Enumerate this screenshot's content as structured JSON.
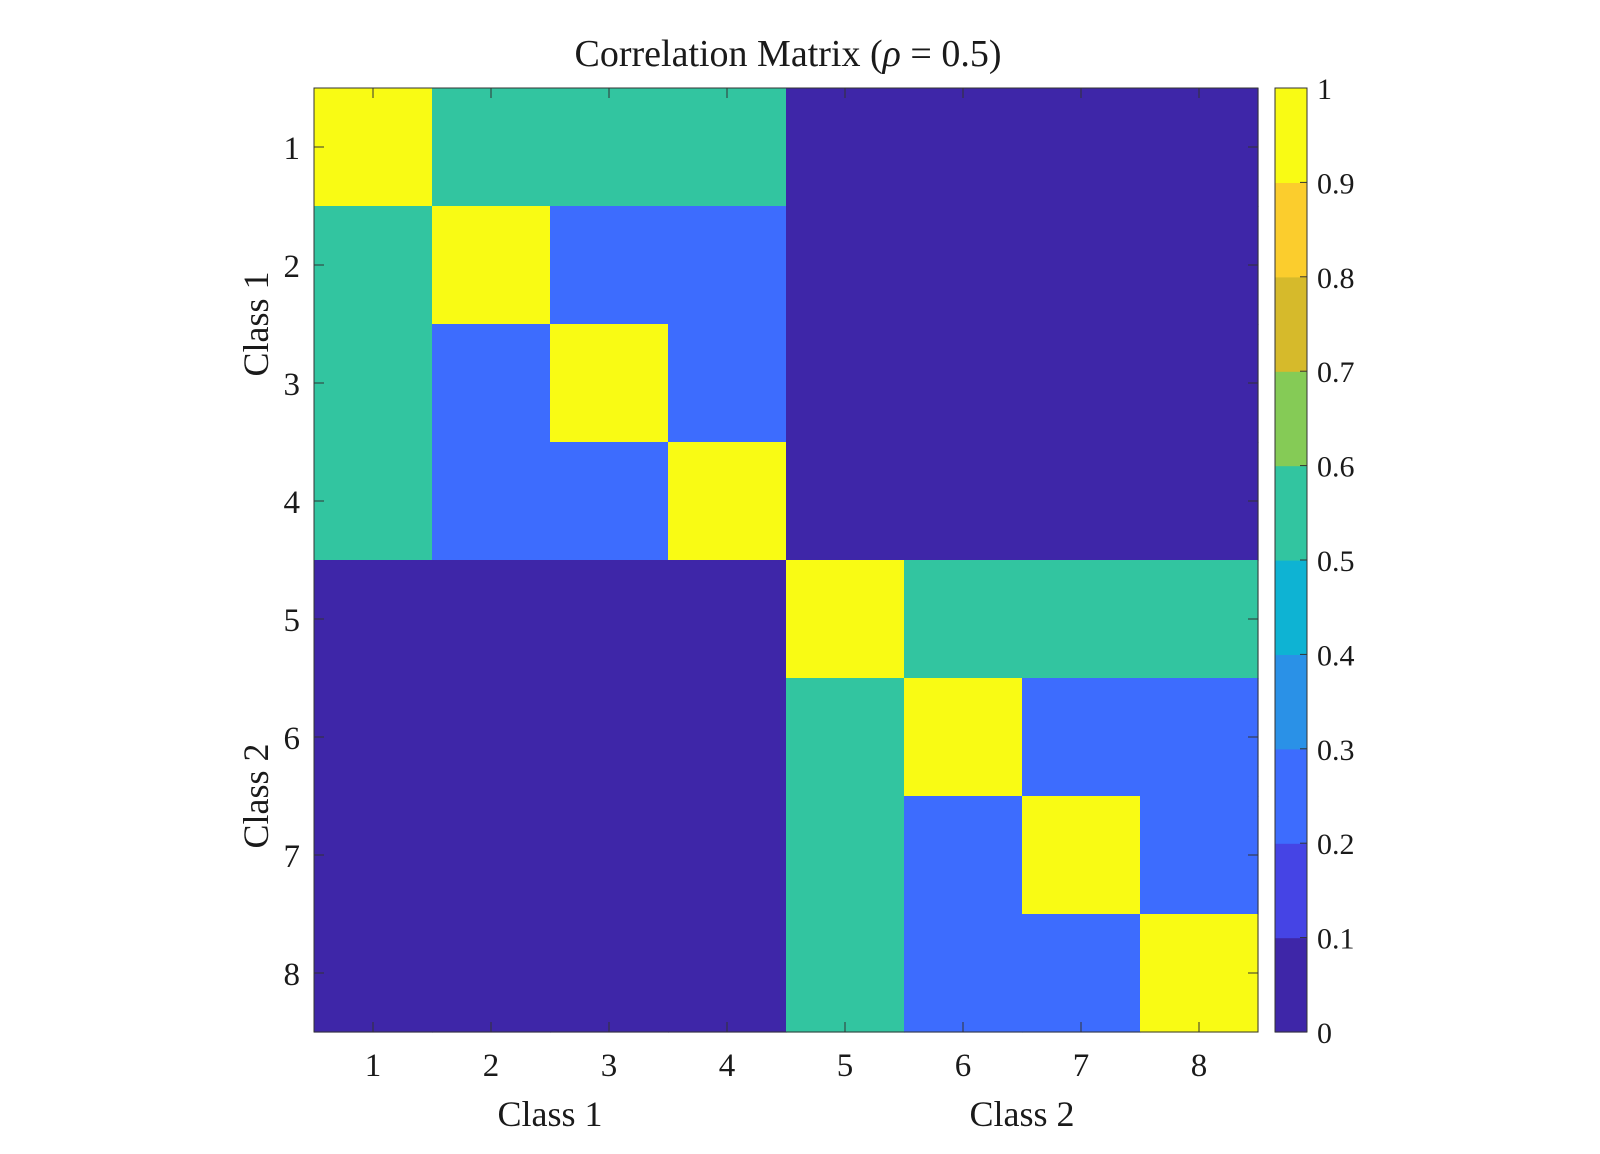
{
  "chart_data": {
    "type": "heatmap",
    "title": "Correlation Matrix (ρ = 0.5)",
    "title_main": "Correlation Matrix (",
    "title_symbol": "ρ",
    "title_tail": " = 0.5)",
    "x_ticks": [
      "1",
      "2",
      "3",
      "4",
      "5",
      "6",
      "7",
      "8"
    ],
    "y_ticks": [
      "1",
      "2",
      "3",
      "4",
      "5",
      "6",
      "7",
      "8"
    ],
    "x_groups": [
      "Class 1",
      "Class 2"
    ],
    "y_groups": [
      "Class 1",
      "Class 2"
    ],
    "values": [
      [
        1.0,
        0.5,
        0.5,
        0.5,
        0.0,
        0.0,
        0.0,
        0.0
      ],
      [
        0.5,
        1.0,
        0.25,
        0.25,
        0.0,
        0.0,
        0.0,
        0.0
      ],
      [
        0.5,
        0.25,
        1.0,
        0.25,
        0.0,
        0.0,
        0.0,
        0.0
      ],
      [
        0.5,
        0.25,
        0.25,
        1.0,
        0.0,
        0.0,
        0.0,
        0.0
      ],
      [
        0.0,
        0.0,
        0.0,
        0.0,
        1.0,
        0.5,
        0.5,
        0.5
      ],
      [
        0.0,
        0.0,
        0.0,
        0.0,
        0.5,
        1.0,
        0.25,
        0.25
      ],
      [
        0.0,
        0.0,
        0.0,
        0.0,
        0.5,
        0.25,
        1.0,
        0.25
      ],
      [
        0.0,
        0.0,
        0.0,
        0.0,
        0.5,
        0.25,
        0.25,
        1.0
      ]
    ],
    "clim": [
      0,
      1
    ],
    "colorbar": {
      "ticks": [
        "0",
        "0.1",
        "0.2",
        "0.3",
        "0.4",
        "0.5",
        "0.6",
        "0.7",
        "0.8",
        "0.9",
        "1"
      ],
      "colors": [
        "#3e26a8",
        "#4544e5",
        "#3d6cfe",
        "#2a91e7",
        "#0eb3d3",
        "#32c5a0",
        "#85cb56",
        "#d6ba2b",
        "#fbcd2d",
        "#f9fb14"
      ]
    },
    "grid": false
  }
}
